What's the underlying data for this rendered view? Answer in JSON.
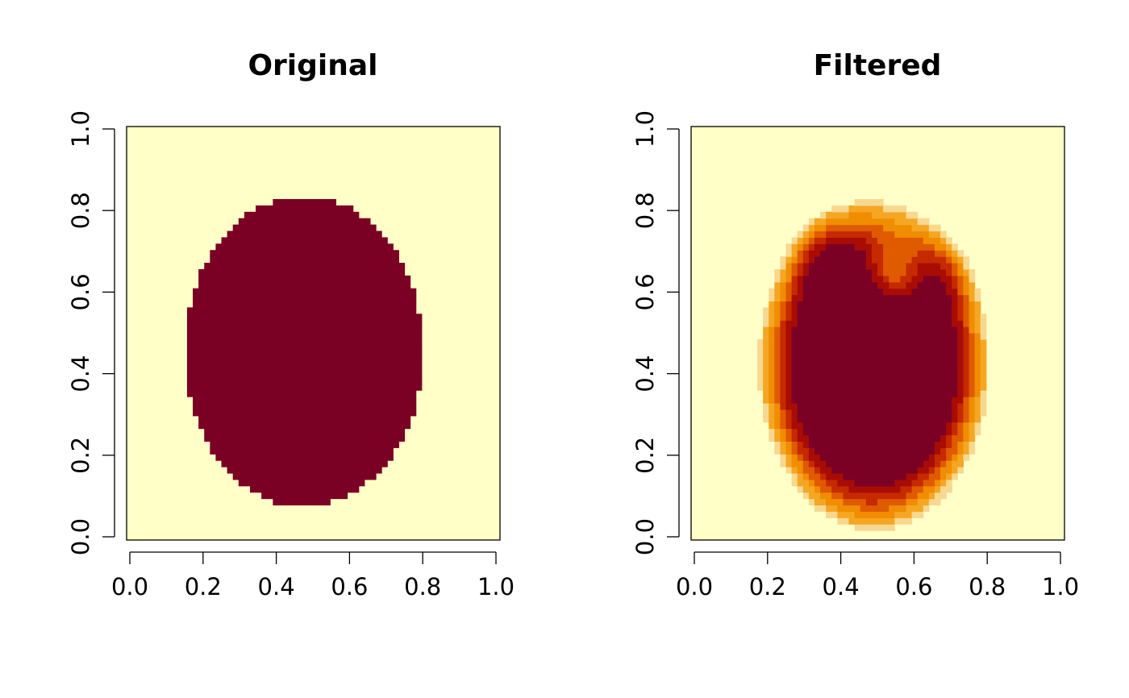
{
  "chart_data": [
    {
      "type": "heatmap",
      "title": "Original",
      "xlabel": "",
      "ylabel": "",
      "xlim": [
        0,
        1
      ],
      "ylim": [
        0,
        1
      ],
      "xticks": [
        "0.0",
        "0.2",
        "0.4",
        "0.6",
        "0.8",
        "1.0"
      ],
      "yticks": [
        "0.0",
        "0.2",
        "0.4",
        "0.6",
        "0.8",
        "1.0"
      ],
      "grid": false,
      "colors": {
        "background": "#ffffc8",
        "foreground": "#7a0025"
      },
      "levels": [
        0,
        1
      ],
      "shape": {
        "kind": "binary-mask",
        "center": [
          0.475,
          0.45
        ],
        "x_extent": [
          0.16,
          0.8
        ],
        "y_extent": [
          0.07,
          0.83
        ]
      }
    },
    {
      "type": "heatmap",
      "title": "Filtered",
      "xlabel": "",
      "ylabel": "",
      "xlim": [
        0,
        1
      ],
      "ylim": [
        0,
        1
      ],
      "xticks": [
        "0.0",
        "0.2",
        "0.4",
        "0.6",
        "0.8",
        "1.0"
      ],
      "yticks": [
        "0.0",
        "0.2",
        "0.4",
        "0.6",
        "0.8",
        "1.0"
      ],
      "grid": false,
      "colors": [
        "#ffffc8",
        "#f7d890",
        "#f5a623",
        "#f08d00",
        "#e05a00",
        "#c52a00",
        "#a80c05",
        "#7a0025"
      ],
      "levels": [
        0,
        0.14,
        0.29,
        0.43,
        0.57,
        0.71,
        0.86,
        1
      ],
      "shape": {
        "kind": "smoothed-blob",
        "x_extent": [
          0.16,
          0.8
        ],
        "y_extent": [
          0.07,
          0.83
        ],
        "notch_at": [
          0.53,
          0.55
        ]
      }
    }
  ]
}
